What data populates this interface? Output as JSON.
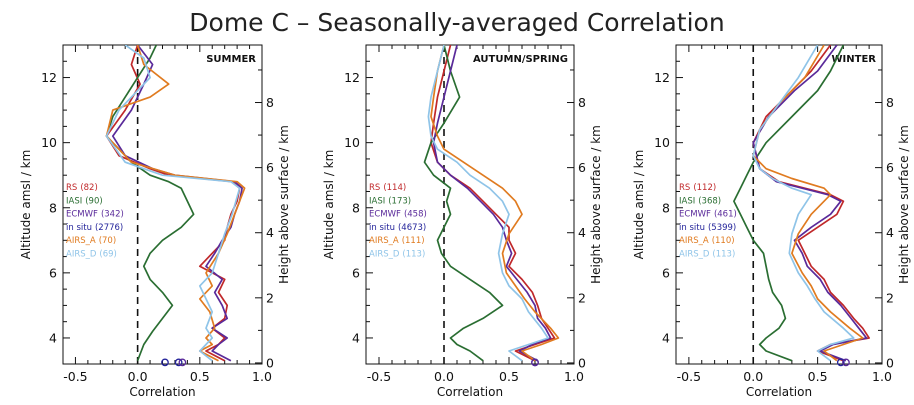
{
  "figure": {
    "title": "Dome C – Seasonally-averaged Correlation"
  },
  "colors": {
    "RS": "#c0282a",
    "IASI": "#2a6e32",
    "ECMWF": "#5a2a9a",
    "in situ": "#23239a",
    "AIRS_A": "#e07b20",
    "AIRS_D": "#8fc4e8"
  },
  "chart_data": [
    {
      "type": "line",
      "title": "SUMMER",
      "xlabel": "Correlation",
      "ylabel": "Altitude amsl / km",
      "ylabel_right": "Height above surface / km",
      "xlim": [
        -0.6,
        1.0
      ],
      "ylim": [
        3.2,
        13.0
      ],
      "xticks": [
        "-0.5",
        "0.0",
        "0.5",
        "1.0"
      ],
      "yticks": [
        "4",
        "6",
        "8",
        "10",
        "12"
      ],
      "yticks_right": [
        "0",
        "2",
        "4",
        "6",
        "8"
      ],
      "legend": [
        {
          "name": "RS",
          "count": "(82)"
        },
        {
          "name": "IASI",
          "count": "(90)"
        },
        {
          "name": "ECMWF",
          "count": "(342)"
        },
        {
          "name": "in situ",
          "count": "(2776)"
        },
        {
          "name": "AIRS_A",
          "count": "(70)"
        },
        {
          "name": "AIRS_D",
          "count": "(69)"
        }
      ],
      "markers": [
        {
          "series": "in situ",
          "x": 0.22,
          "y": 3.25
        },
        {
          "series": "in situ",
          "x": 0.33,
          "y": 3.25
        },
        {
          "series": "ECMWF",
          "x": 0.36,
          "y": 3.25
        }
      ],
      "series": [
        {
          "name": "RS",
          "x": [
            0.7,
            0.55,
            0.65,
            0.7,
            0.6,
            0.7,
            0.72,
            0.65,
            0.7,
            0.5,
            0.6,
            0.7,
            0.72,
            0.75,
            0.8,
            0.82,
            0.76,
            0.25,
            0.1,
            -0.15,
            -0.25,
            -0.1,
            0.02,
            -0.05,
            0.0
          ],
          "y": [
            3.3,
            3.6,
            3.8,
            4.0,
            4.3,
            4.6,
            5.0,
            5.4,
            5.8,
            6.2,
            6.6,
            7.0,
            7.4,
            7.8,
            8.2,
            8.6,
            8.8,
            9.0,
            9.2,
            9.6,
            10.2,
            11.0,
            11.8,
            12.4,
            13.0
          ]
        },
        {
          "name": "IASI",
          "x": [
            0.0,
            0.05,
            0.12,
            0.2,
            0.28,
            0.2,
            0.1,
            0.05,
            0.1,
            0.2,
            0.35,
            0.45,
            0.4,
            0.35,
            0.25,
            0.1,
            -0.05,
            -0.15,
            -0.25,
            -0.2,
            -0.1,
            0.0,
            0.1,
            0.15
          ],
          "y": [
            3.3,
            3.8,
            4.2,
            4.6,
            5.0,
            5.4,
            5.8,
            6.2,
            6.6,
            7.0,
            7.4,
            7.8,
            8.2,
            8.6,
            8.8,
            9.0,
            9.4,
            9.8,
            10.2,
            10.8,
            11.4,
            12.0,
            12.6,
            13.0
          ]
        },
        {
          "name": "ECMWF",
          "x": [
            0.75,
            0.6,
            0.65,
            0.72,
            0.6,
            0.72,
            0.68,
            0.62,
            0.68,
            0.55,
            0.62,
            0.68,
            0.75,
            0.78,
            0.82,
            0.84,
            0.78,
            0.3,
            0.12,
            -0.1,
            -0.2,
            -0.05,
            0.05,
            0.12,
            0.0
          ],
          "y": [
            3.3,
            3.6,
            3.8,
            4.0,
            4.3,
            4.6,
            5.0,
            5.4,
            5.8,
            6.2,
            6.6,
            7.0,
            7.4,
            7.8,
            8.2,
            8.6,
            8.8,
            9.0,
            9.2,
            9.6,
            10.2,
            11.0,
            11.8,
            12.4,
            13.0
          ]
        },
        {
          "name": "AIRS_A",
          "x": [
            0.65,
            0.5,
            0.6,
            0.55,
            0.62,
            0.58,
            0.5,
            0.6,
            0.55,
            0.65,
            0.72,
            0.78,
            0.86,
            0.8,
            0.3,
            -0.05,
            -0.25,
            -0.2,
            0.1,
            0.25,
            0.05,
            0.0
          ],
          "y": [
            3.3,
            3.6,
            3.8,
            4.0,
            4.3,
            4.8,
            5.2,
            5.6,
            6.0,
            6.6,
            7.2,
            7.8,
            8.6,
            8.8,
            9.0,
            9.4,
            10.2,
            11.0,
            11.4,
            11.8,
            12.4,
            13.0
          ]
        },
        {
          "name": "AIRS_D",
          "x": [
            0.6,
            0.5,
            0.55,
            0.6,
            0.55,
            0.6,
            0.55,
            0.5,
            0.6,
            0.65,
            0.7,
            0.76,
            0.82,
            0.75,
            0.2,
            -0.1,
            -0.25,
            -0.15,
            0.0,
            0.1,
            0.05,
            -0.1
          ],
          "y": [
            3.3,
            3.6,
            3.8,
            4.0,
            4.3,
            4.8,
            5.2,
            5.6,
            6.0,
            6.6,
            7.2,
            7.8,
            8.6,
            8.8,
            9.0,
            9.4,
            10.2,
            11.0,
            11.6,
            12.0,
            12.6,
            13.0
          ]
        }
      ]
    },
    {
      "type": "line",
      "title": "AUTUMN/SPRING",
      "xlabel": "Correlation",
      "ylabel": "Altitude amsl / km",
      "ylabel_right": "Height above surface / km",
      "xlim": [
        -0.6,
        1.0
      ],
      "ylim": [
        3.2,
        13.0
      ],
      "xticks": [
        "-0.5",
        "0.0",
        "0.5",
        "1.0"
      ],
      "yticks": [
        "4",
        "6",
        "8",
        "10",
        "12"
      ],
      "yticks_right": [
        "0",
        "2",
        "4",
        "6",
        "8"
      ],
      "legend": [
        {
          "name": "RS",
          "count": "(114)"
        },
        {
          "name": "IASI",
          "count": "(173)"
        },
        {
          "name": "ECMWF",
          "count": "(458)"
        },
        {
          "name": "in situ",
          "count": "(4673)"
        },
        {
          "name": "AIRS_A",
          "count": "(111)"
        },
        {
          "name": "AIRS_D",
          "count": "(113)"
        }
      ],
      "markers": [
        {
          "series": "in situ",
          "x": 0.7,
          "y": 3.25
        },
        {
          "series": "ECMWF",
          "x": 0.7,
          "y": 3.25
        }
      ],
      "series": [
        {
          "name": "RS",
          "x": [
            0.7,
            0.55,
            0.7,
            0.85,
            0.8,
            0.75,
            0.72,
            0.68,
            0.6,
            0.5,
            0.55,
            0.5,
            0.5,
            0.4,
            0.3,
            0.2,
            0.05,
            -0.05,
            -0.1,
            -0.08,
            -0.05,
            0.0,
            0.05
          ],
          "y": [
            3.3,
            3.6,
            3.8,
            4.0,
            4.3,
            4.6,
            5.0,
            5.4,
            5.8,
            6.2,
            6.6,
            7.0,
            7.4,
            7.8,
            8.2,
            8.6,
            9.0,
            9.4,
            10.0,
            10.6,
            11.4,
            12.2,
            13.0
          ]
        },
        {
          "name": "IASI",
          "x": [
            0.3,
            0.2,
            0.1,
            0.05,
            0.15,
            0.3,
            0.45,
            0.35,
            0.2,
            0.05,
            -0.02,
            -0.05,
            0.0,
            0.05,
            0.02,
            0.05,
            -0.08,
            -0.15,
            -0.1,
            0.0,
            0.12,
            0.05,
            0.0
          ],
          "y": [
            3.3,
            3.6,
            3.8,
            4.0,
            4.3,
            4.6,
            5.0,
            5.4,
            5.8,
            6.2,
            6.6,
            7.0,
            7.4,
            7.8,
            8.2,
            8.6,
            9.0,
            9.4,
            10.0,
            10.6,
            11.4,
            12.2,
            13.0
          ]
        },
        {
          "name": "ECMWF",
          "x": [
            0.72,
            0.58,
            0.68,
            0.82,
            0.78,
            0.72,
            0.7,
            0.64,
            0.56,
            0.48,
            0.52,
            0.48,
            0.45,
            0.38,
            0.28,
            0.18,
            0.05,
            -0.05,
            -0.08,
            -0.05,
            0.0,
            0.05,
            0.1
          ],
          "y": [
            3.3,
            3.6,
            3.8,
            4.0,
            4.3,
            4.6,
            5.0,
            5.4,
            5.8,
            6.2,
            6.6,
            7.0,
            7.4,
            7.8,
            8.2,
            8.6,
            9.0,
            9.4,
            10.0,
            10.6,
            11.4,
            12.2,
            13.0
          ]
        },
        {
          "name": "AIRS_A",
          "x": [
            0.7,
            0.6,
            0.75,
            0.88,
            0.82,
            0.7,
            0.62,
            0.55,
            0.48,
            0.45,
            0.5,
            0.6,
            0.55,
            0.45,
            0.3,
            0.15,
            0.0,
            -0.05,
            -0.1,
            -0.08,
            -0.05,
            0.0
          ],
          "y": [
            3.3,
            3.6,
            3.8,
            4.0,
            4.3,
            4.8,
            5.2,
            5.6,
            6.0,
            6.6,
            7.2,
            7.8,
            8.2,
            8.6,
            9.0,
            9.4,
            9.8,
            10.2,
            10.8,
            11.4,
            12.2,
            13.0
          ]
        },
        {
          "name": "AIRS_D",
          "x": [
            0.6,
            0.5,
            0.65,
            0.8,
            0.75,
            0.65,
            0.6,
            0.5,
            0.45,
            0.42,
            0.45,
            0.5,
            0.45,
            0.35,
            0.2,
            0.1,
            -0.05,
            -0.1,
            -0.12,
            -0.1,
            -0.05,
            0.0
          ],
          "y": [
            3.3,
            3.6,
            3.8,
            4.0,
            4.3,
            4.8,
            5.2,
            5.6,
            6.0,
            6.6,
            7.2,
            7.8,
            8.2,
            8.6,
            9.0,
            9.4,
            9.8,
            10.2,
            10.8,
            11.4,
            12.2,
            13.0
          ]
        }
      ]
    },
    {
      "type": "line",
      "title": "WINTER",
      "xlabel": "Correlation",
      "ylabel": "Altitude amsl / km",
      "ylabel_right": "Height above surface / km",
      "xlim": [
        -0.6,
        1.0
      ],
      "ylim": [
        3.2,
        13.0
      ],
      "xticks": [
        "-0.5",
        "0.0",
        "0.5",
        "1.0"
      ],
      "yticks": [
        "4",
        "6",
        "8",
        "10",
        "12"
      ],
      "yticks_right": [
        "0",
        "2",
        "4",
        "6",
        "8"
      ],
      "legend": [
        {
          "name": "RS",
          "count": "(112)"
        },
        {
          "name": "IASI",
          "count": "(368)"
        },
        {
          "name": "ECMWF",
          "count": "(461)"
        },
        {
          "name": "in situ",
          "count": "(5399)"
        },
        {
          "name": "AIRS_A",
          "count": "(110)"
        },
        {
          "name": "AIRS_D",
          "count": "(113)"
        }
      ],
      "markers": [
        {
          "series": "in situ",
          "x": 0.68,
          "y": 3.25
        },
        {
          "series": "ECMWF",
          "x": 0.72,
          "y": 3.25
        }
      ],
      "series": [
        {
          "name": "RS",
          "x": [
            0.7,
            0.5,
            0.6,
            0.9,
            0.85,
            0.78,
            0.7,
            0.6,
            0.55,
            0.45,
            0.4,
            0.35,
            0.5,
            0.65,
            0.7,
            0.6,
            0.2,
            0.05,
            0.0,
            0.1,
            0.3,
            0.45,
            0.6
          ],
          "y": [
            3.3,
            3.6,
            3.8,
            4.0,
            4.3,
            4.6,
            5.0,
            5.4,
            5.8,
            6.2,
            6.6,
            7.0,
            7.4,
            7.8,
            8.2,
            8.4,
            8.8,
            9.2,
            10.0,
            10.8,
            11.6,
            12.2,
            13.0
          ]
        },
        {
          "name": "IASI",
          "x": [
            0.3,
            0.1,
            0.05,
            0.1,
            0.2,
            0.25,
            0.22,
            0.15,
            0.12,
            0.1,
            0.08,
            0.0,
            -0.05,
            -0.1,
            -0.15,
            -0.1,
            -0.05,
            0.0,
            0.1,
            0.3,
            0.5,
            0.6,
            0.7
          ],
          "y": [
            3.3,
            3.6,
            3.8,
            4.0,
            4.3,
            4.6,
            5.0,
            5.4,
            5.8,
            6.2,
            6.6,
            7.0,
            7.4,
            7.8,
            8.2,
            8.6,
            9.0,
            9.4,
            10.0,
            10.8,
            11.6,
            12.2,
            13.0
          ]
        },
        {
          "name": "ECMWF",
          "x": [
            0.72,
            0.52,
            0.62,
            0.88,
            0.82,
            0.76,
            0.68,
            0.58,
            0.52,
            0.42,
            0.38,
            0.32,
            0.45,
            0.6,
            0.68,
            0.58,
            0.18,
            0.05,
            0.0,
            0.12,
            0.32,
            0.5,
            0.65
          ],
          "y": [
            3.3,
            3.6,
            3.8,
            4.0,
            4.3,
            4.6,
            5.0,
            5.4,
            5.8,
            6.2,
            6.6,
            7.0,
            7.4,
            7.8,
            8.2,
            8.4,
            8.8,
            9.2,
            10.0,
            10.8,
            11.6,
            12.2,
            13.0
          ]
        },
        {
          "name": "AIRS_A",
          "x": [
            0.65,
            0.55,
            0.7,
            0.85,
            0.75,
            0.6,
            0.5,
            0.45,
            0.38,
            0.3,
            0.35,
            0.45,
            0.6,
            0.55,
            0.3,
            0.1,
            0.0,
            0.05,
            0.2,
            0.4,
            0.55
          ],
          "y": [
            3.3,
            3.6,
            3.8,
            4.0,
            4.3,
            4.8,
            5.2,
            5.6,
            6.0,
            6.6,
            7.2,
            7.8,
            8.4,
            8.6,
            8.9,
            9.2,
            9.6,
            10.4,
            11.2,
            12.0,
            13.0
          ]
        },
        {
          "name": "AIRS_D",
          "x": [
            0.6,
            0.5,
            0.6,
            0.78,
            0.7,
            0.55,
            0.48,
            0.42,
            0.35,
            0.28,
            0.3,
            0.35,
            0.45,
            0.3,
            0.15,
            0.05,
            0.0,
            0.05,
            0.2,
            0.35,
            0.5
          ],
          "y": [
            3.3,
            3.6,
            3.8,
            4.0,
            4.3,
            4.8,
            5.2,
            5.6,
            6.0,
            6.6,
            7.2,
            7.8,
            8.4,
            8.6,
            8.9,
            9.2,
            9.6,
            10.4,
            11.2,
            12.0,
            13.0
          ]
        }
      ]
    }
  ]
}
